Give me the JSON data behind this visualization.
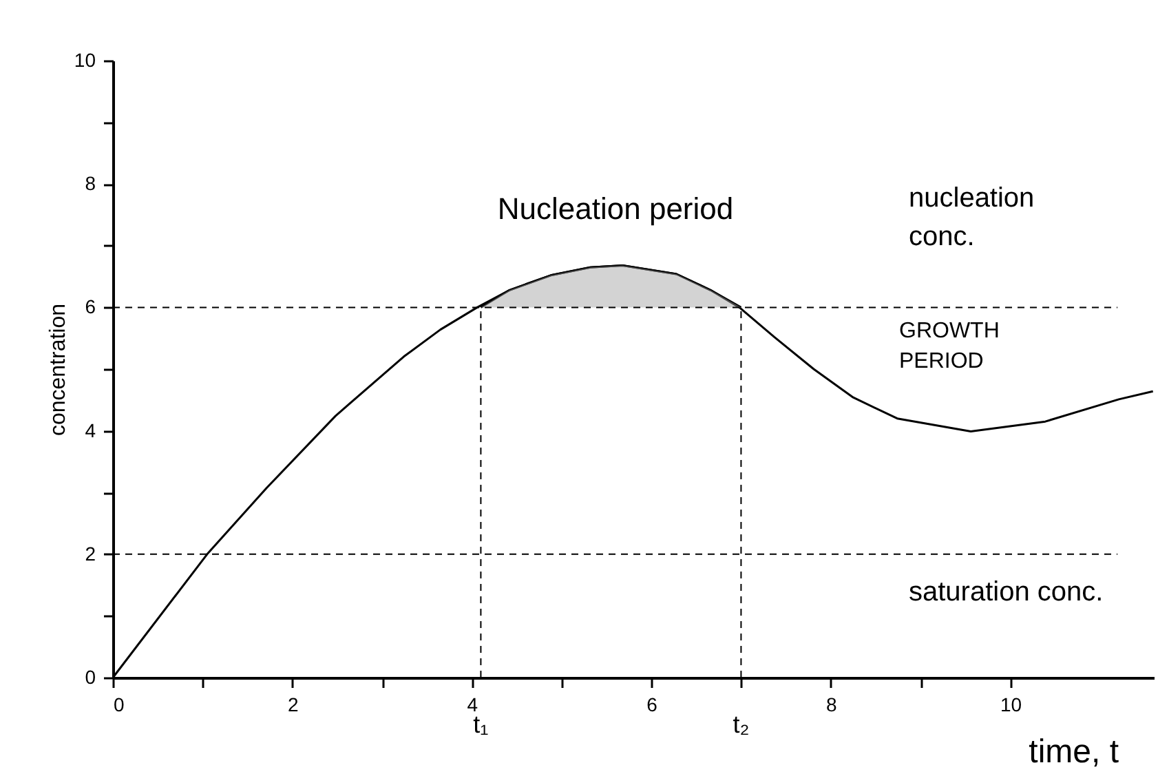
{
  "chart_data": {
    "type": "line",
    "xlabel": "time, t",
    "ylabel": "concentration",
    "x": [
      0,
      1.05,
      1.71,
      2.48,
      3.24,
      3.65,
      4.06,
      4.42,
      4.88,
      5.32,
      5.68,
      6.28,
      6.66,
      6.99,
      7.37,
      7.81,
      8.25,
      8.74,
      9.56,
      10.39,
      11.21,
      11.59
    ],
    "series": [
      {
        "color": "#000000",
        "values": [
          0,
          2.0,
          3.07,
          4.24,
          5.2,
          5.64,
          6.0,
          6.28,
          6.52,
          6.65,
          6.68,
          6.54,
          6.28,
          5.99,
          5.52,
          5.0,
          4.54,
          4.2,
          3.99,
          4.15,
          4.51,
          4.64
        ]
      },
      {
        "color": "#000000",
        "x": [
          4.1,
          4.42,
          4.88,
          5.32,
          5.68,
          6.28,
          6.66,
          7.0
        ],
        "values": [
          6.0,
          6.28,
          6.52,
          6.65,
          6.68,
          6.54,
          6.28,
          6.0
        ],
        "lower": [
          6,
          6,
          6,
          6,
          6,
          6,
          6,
          6
        ],
        "upper": [
          6.0,
          6.28,
          6.52,
          6.65,
          6.68,
          6.54,
          6.28,
          6.0
        ]
      }
    ],
    "xlim": [
      0,
      11.6
    ],
    "ylim": [
      0,
      10
    ],
    "xticks": [
      0,
      {
        "value": 1,
        "label": null
      },
      2,
      {
        "value": 3,
        "label": null
      },
      4,
      {
        "value": 5,
        "label": null
      },
      6,
      {
        "value": 7,
        "label": null
      },
      8,
      {
        "value": 9,
        "label": null
      },
      10
    ],
    "yticks": [
      0,
      {
        "value": 1,
        "label": null
      },
      2,
      {
        "value": 3,
        "label": null
      },
      4,
      {
        "value": 5,
        "label": null
      },
      6,
      {
        "value": 7,
        "label": null
      },
      8,
      {
        "value": 9,
        "label": null
      },
      10
    ],
    "ref_lines": [
      {
        "axis": "y",
        "value": 6,
        "label": "nucleation conc.",
        "line_style": "dashed"
      },
      {
        "axis": "y",
        "value": 2,
        "label": "saturation conc.",
        "line_style": "dashed"
      },
      {
        "axis": "x",
        "value": 4.1,
        "label": "t₁",
        "line_style": "dashed"
      },
      {
        "axis": "x",
        "value": 7.0,
        "label": "t₂",
        "line_style": "dashed"
      }
    ],
    "annotations": [
      "GROWTH PERIOD",
      "Nucleation period"
    ],
    "grid": false,
    "marker": "none",
    "line_style": "solid"
  }
}
